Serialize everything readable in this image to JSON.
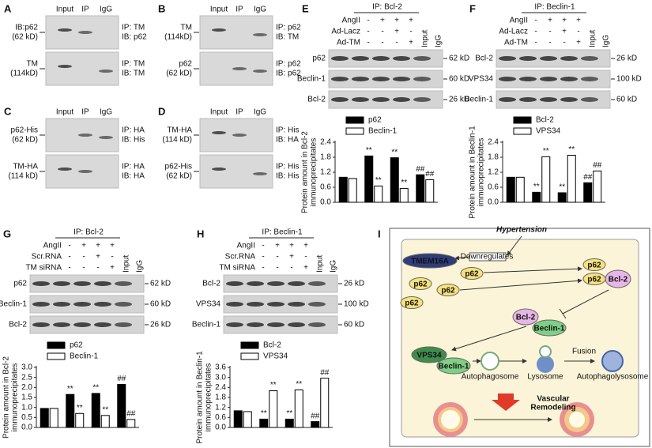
{
  "blot_panels": [
    {
      "letter": "A",
      "columns": [
        "Input",
        "IP",
        "IgG"
      ],
      "rows": [
        {
          "left": [
            "IB:p62",
            "(62 kD)"
          ],
          "right": [
            "IP: TM",
            "IB: p62"
          ]
        },
        {
          "left": [
            "TM",
            "(114kD)"
          ],
          "right": [
            "IP: TM",
            "IB: TM"
          ]
        }
      ]
    },
    {
      "letter": "B",
      "columns": [
        "Input",
        "IP",
        "IgG"
      ],
      "rows": [
        {
          "left": [
            "TM",
            "(114kD)"
          ],
          "right": [
            "IP: p62",
            "IB: TM"
          ]
        },
        {
          "left": [
            "p62",
            "(62 kD)"
          ],
          "right": [
            "IP: p62",
            "IB: p62"
          ]
        }
      ]
    },
    {
      "letter": "C",
      "columns": [
        "Input",
        "IP",
        "IgG"
      ],
      "rows": [
        {
          "left": [
            "p62-His",
            "(62 kD)"
          ],
          "right": [
            "IP: HA",
            "IB: His"
          ]
        },
        {
          "left": [
            "TM-HA",
            "(114 kD)"
          ],
          "right": [
            "IP: HA",
            "IB: HA"
          ]
        }
      ]
    },
    {
      "letter": "D",
      "columns": [
        "Input",
        "IP",
        "IgG"
      ],
      "rows": [
        {
          "left": [
            "TM-HA",
            "(114 kD)"
          ],
          "right": [
            "IP: His",
            "IB: HA"
          ]
        },
        {
          "left": [
            "p62-His",
            "(62 kD)"
          ],
          "right": [
            "IP: His",
            "IB: His"
          ]
        }
      ]
    }
  ],
  "ip_panels": [
    {
      "letter": "E",
      "ip": "IP: Bcl-2",
      "treatments": [
        {
          "name": "AngII",
          "signs": [
            "-",
            "+",
            "+",
            "+"
          ]
        },
        {
          "name": "Ad-Lacz",
          "signs": [
            "-",
            "-",
            "+",
            "-"
          ]
        },
        {
          "name": "Ad-TM",
          "signs": [
            "-",
            "-",
            "-",
            "+"
          ]
        }
      ],
      "lanes": [
        "Input",
        "IgG"
      ],
      "blots": [
        {
          "left": "p62",
          "right": "62 kD"
        },
        {
          "left": "Beclin-1",
          "right": "60 kD"
        },
        {
          "left": "Bcl-2",
          "right": "26 kD"
        }
      ]
    },
    {
      "letter": "F",
      "ip": "IP: Beclin-1",
      "treatments": [
        {
          "name": "AngII",
          "signs": [
            "-",
            "+",
            "+",
            "+"
          ]
        },
        {
          "name": "Ad-Lacz",
          "signs": [
            "-",
            "-",
            "+",
            "-"
          ]
        },
        {
          "name": "Ad-TM",
          "signs": [
            "-",
            "-",
            "-",
            "+"
          ]
        }
      ],
      "lanes": [
        "Input",
        "IgG"
      ],
      "blots": [
        {
          "left": "Bcl-2",
          "right": "26 kD"
        },
        {
          "left": "VPS34",
          "right": "100 kD"
        },
        {
          "left": "Beclin-1",
          "right": "60 kD"
        }
      ]
    },
    {
      "letter": "G",
      "ip": "IP: Bcl-2",
      "treatments": [
        {
          "name": "AngII",
          "signs": [
            "-",
            "+",
            "+",
            "+"
          ]
        },
        {
          "name": "Scr.RNA",
          "signs": [
            "-",
            "-",
            "+",
            "-"
          ]
        },
        {
          "name": "TM siRNA",
          "signs": [
            "-",
            "-",
            "-",
            "+"
          ]
        }
      ],
      "lanes": [
        "Input",
        "IgG"
      ],
      "blots": [
        {
          "left": "p62",
          "right": "62 kD"
        },
        {
          "left": "Beclin-1",
          "right": "60 kD"
        },
        {
          "left": "Bcl-2",
          "right": "26 kD"
        }
      ]
    },
    {
      "letter": "H",
      "ip": "IP: Beclin-1",
      "treatments": [
        {
          "name": "AngII",
          "signs": [
            "-",
            "+",
            "+",
            "+"
          ]
        },
        {
          "name": "Scr.RNA",
          "signs": [
            "-",
            "-",
            "+",
            "-"
          ]
        },
        {
          "name": "TM siRNA",
          "signs": [
            "-",
            "-",
            "-",
            "+"
          ]
        }
      ],
      "lanes": [
        "Input",
        "IgG"
      ],
      "blots": [
        {
          "left": "Bcl-2",
          "right": "26 kD"
        },
        {
          "left": "VPS34",
          "right": "100 kD"
        },
        {
          "left": "Beclin-1",
          "right": "60 kD"
        }
      ]
    }
  ],
  "chart_data": [
    {
      "type": "bar",
      "y_label": [
        "Protein amount in Bcl-2",
        "immunoprecipitates"
      ],
      "categories": [
        null,
        null,
        null,
        null
      ],
      "ylim": [
        0,
        2.4
      ],
      "yticks": [
        {
          "value": 0,
          "label": "0.0"
        },
        0.6,
        1.2,
        1.8,
        2.4
      ],
      "series": [
        {
          "name": "p62",
          "color": "#000000",
          "values": [
            1.0,
            1.85,
            1.78,
            1.1
          ],
          "significance": [
            null,
            "**",
            "**",
            "##"
          ]
        },
        {
          "name": "Beclin-1",
          "color": "#ffffff",
          "values": [
            0.95,
            0.65,
            0.55,
            0.9
          ],
          "significance": [
            null,
            "**",
            "**",
            "##"
          ]
        }
      ]
    },
    {
      "type": "bar",
      "y_label": [
        "Protein amount in Beclin-1",
        "immunoprecipitates"
      ],
      "categories": [
        null,
        null,
        null,
        null
      ],
      "ylim": [
        0,
        2.4
      ],
      "yticks": [
        {
          "value": 0,
          "label": "0.0"
        },
        0.6,
        1.2,
        1.8,
        2.4
      ],
      "series": [
        {
          "name": "Bcl-2",
          "color": "#000000",
          "values": [
            1.0,
            0.4,
            0.38,
            0.78
          ],
          "significance": [
            null,
            "**",
            "**",
            "##"
          ]
        },
        {
          "name": "VPS34",
          "color": "#ffffff",
          "values": [
            1.0,
            1.82,
            1.88,
            1.25
          ],
          "significance": [
            null,
            "**",
            "**",
            "##"
          ]
        }
      ]
    },
    {
      "type": "bar",
      "y_label": [
        "Protein amount in Bcl-2",
        "immunoprecipitates"
      ],
      "categories": [
        null,
        null,
        null,
        null
      ],
      "ylim": [
        0,
        3
      ],
      "yticks": [
        {
          "value": 0,
          "label": "0.0"
        },
        0.5,
        {
          "value": 1,
          "label": "1.0"
        },
        1.5,
        {
          "value": 2,
          "label": "2.0"
        },
        2.5,
        {
          "value": 3,
          "label": "3.0"
        }
      ],
      "series": [
        {
          "name": "p62",
          "color": "#000000",
          "values": [
            0.95,
            1.65,
            1.7,
            2.15
          ],
          "significance": [
            null,
            "**",
            "**",
            "##"
          ]
        },
        {
          "name": "Beclin-1",
          "color": "#ffffff",
          "values": [
            0.95,
            0.7,
            0.6,
            0.4
          ],
          "significance": [
            null,
            "**",
            "**",
            "##"
          ]
        }
      ]
    },
    {
      "type": "bar",
      "y_label": [
        "Protein amount in Beclin-1",
        "immunoprecipitates"
      ],
      "categories": [
        null,
        null,
        null,
        null
      ],
      "ylim": [
        0,
        3.6
      ],
      "yticks": [
        {
          "value": 0,
          "label": "0.0"
        },
        0.6,
        1.2,
        1.8,
        2.4,
        {
          "value": 3,
          "label": "3.0"
        },
        3.6
      ],
      "series": [
        {
          "name": "Bcl-2",
          "color": "#000000",
          "values": [
            1.0,
            0.5,
            0.5,
            0.35
          ],
          "significance": [
            null,
            "**",
            "**",
            "##"
          ]
        },
        {
          "name": "VPS34",
          "color": "#ffffff",
          "values": [
            0.95,
            2.2,
            2.25,
            2.95
          ],
          "significance": [
            null,
            "**",
            "**",
            "##"
          ]
        }
      ]
    }
  ],
  "diagram": {
    "letter": "I",
    "title": "Hypertension",
    "nodes": [
      {
        "label": "TMEM16A"
      },
      {
        "label": "p62"
      },
      {
        "label": "p62"
      },
      {
        "label": "p62"
      },
      {
        "label": "p62"
      },
      {
        "label": "p62"
      },
      {
        "label": "p62"
      },
      {
        "label": "Bcl-2"
      },
      {
        "label": "Bcl-2"
      },
      {
        "label": "Beclin-1"
      },
      {
        "label": "VPS34"
      },
      {
        "label": "Beclin-1"
      }
    ],
    "labels": [
      "Downregulates",
      "Autophagosome",
      "Lysosome",
      "Fusion",
      "Autophagolysosome",
      "Vascular",
      "Remodeling"
    ]
  }
}
